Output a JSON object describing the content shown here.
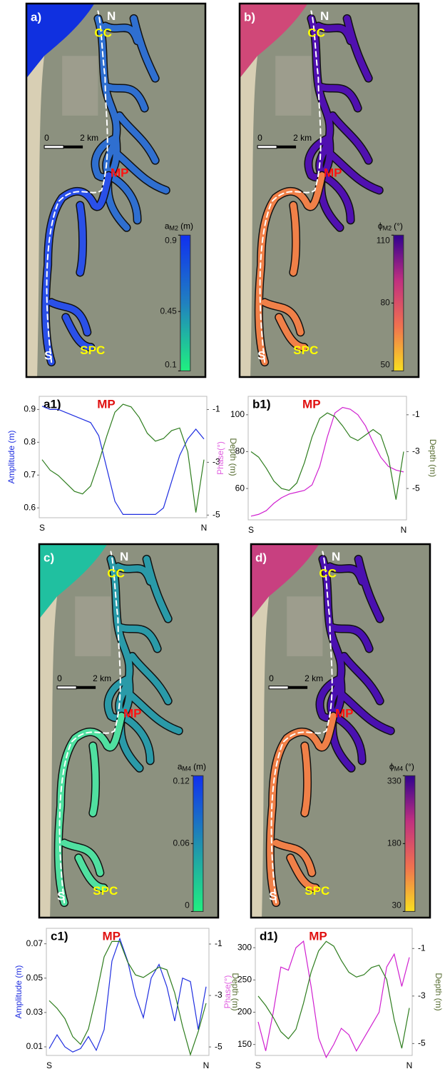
{
  "chart_data": [
    {
      "type": "line",
      "title": "a1)",
      "annotation": "MP",
      "ylabel": "Amplitude (m)",
      "ylabel_color": "#1f2ee0",
      "y2label": "Depth (m)",
      "y2label_color": "#556b2f",
      "categories": [
        "S",
        null,
        null,
        null,
        null,
        null,
        null,
        null,
        null,
        null,
        null,
        null,
        null,
        null,
        null,
        null,
        null,
        null,
        null,
        null,
        "N"
      ],
      "ylim": [
        0.57,
        0.94
      ],
      "yticks": [
        0.6,
        0.7,
        0.8,
        0.9
      ],
      "y2lim": [
        -5.1,
        -0.5
      ],
      "y2ticks": [
        -1,
        -3,
        -5
      ],
      "series": [
        {
          "color": "#1f2ee0",
          "values": [
            0.91,
            0.9,
            0.9,
            0.89,
            0.88,
            0.87,
            0.86,
            0.82,
            0.72,
            0.62,
            0.58,
            0.58,
            0.58,
            0.58,
            0.58,
            0.6,
            0.68,
            0.76,
            0.81,
            0.84,
            0.81
          ]
        },
        {
          "color": "#2e7d1e",
          "axis": "y2",
          "values": [
            -2.9,
            -3.3,
            -3.5,
            -3.8,
            -4.1,
            -4.2,
            -3.9,
            -3.0,
            -2.0,
            -1.1,
            -0.8,
            -0.9,
            -1.3,
            -1.9,
            -2.2,
            -2.1,
            -1.8,
            -1.7,
            -2.6,
            -4.9,
            -2.9
          ]
        }
      ]
    },
    {
      "type": "line",
      "title": "b1)",
      "annotation": "MP",
      "ylabel": "Phase(°)",
      "ylabel_color": "#e060e0",
      "y2label": "Depth (m)",
      "y2label_color": "#556b2f",
      "categories": [
        "S",
        null,
        null,
        null,
        null,
        null,
        null,
        null,
        null,
        null,
        null,
        null,
        null,
        null,
        null,
        null,
        null,
        null,
        null,
        null,
        "N"
      ],
      "ylim": [
        43,
        110
      ],
      "yticks": [
        60,
        80,
        100
      ],
      "y2lim": [
        -6.7,
        0
      ],
      "y2ticks": [
        -1,
        -3,
        -5
      ],
      "series": [
        {
          "color": "#d020d0",
          "values": [
            45,
            46,
            48,
            52,
            55,
            57,
            58,
            59,
            62,
            72,
            88,
            101,
            104,
            103,
            100,
            94,
            85,
            77,
            72,
            70,
            69
          ]
        },
        {
          "color": "#2e7d1e",
          "axis": "y2",
          "values": [
            -3.0,
            -3.3,
            -3.9,
            -4.6,
            -5.0,
            -5.1,
            -4.7,
            -3.6,
            -2.2,
            -1.2,
            -0.9,
            -1.1,
            -1.6,
            -2.2,
            -2.4,
            -2.1,
            -1.8,
            -2.1,
            -3.3,
            -5.6,
            -3.0
          ]
        }
      ]
    },
    {
      "type": "line",
      "title": "c1)",
      "annotation": "MP",
      "ylabel": "Amplitude (m)",
      "ylabel_color": "#1f2ee0",
      "y2label": "Depth (m)",
      "y2label_color": "#556b2f",
      "categories": [
        "S",
        null,
        null,
        null,
        null,
        null,
        null,
        null,
        null,
        null,
        null,
        null,
        null,
        null,
        null,
        null,
        null,
        null,
        null,
        null,
        "N"
      ],
      "ylim": [
        0.005,
        0.079
      ],
      "yticks": [
        0.01,
        0.03,
        0.05,
        0.07
      ],
      "y2lim": [
        -5.33,
        -0.39
      ],
      "y2ticks": [
        -1,
        -3,
        -5
      ],
      "series": [
        {
          "color": "#1f2ee0",
          "values": [
            0.009,
            0.017,
            0.01,
            0.007,
            0.009,
            0.016,
            0.008,
            0.02,
            0.06,
            0.073,
            0.06,
            0.04,
            0.027,
            0.05,
            0.058,
            0.045,
            0.025,
            0.05,
            0.048,
            0.02,
            0.045
          ]
        },
        {
          "color": "#2e7d1e",
          "axis": "y2",
          "values": [
            -3.2,
            -3.5,
            -3.9,
            -4.6,
            -4.9,
            -4.3,
            -3.0,
            -1.5,
            -0.9,
            -0.9,
            -1.7,
            -2.2,
            -2.3,
            -2.1,
            -1.9,
            -2.0,
            -2.9,
            -4.2,
            -5.3,
            -4.4,
            -3.3
          ]
        }
      ]
    },
    {
      "type": "line",
      "title": "d1)",
      "annotation": "MP",
      "ylabel": "Phase(°)",
      "ylabel_color": "#e060e0",
      "y2label": "Depth (m)",
      "y2label_color": "#556b2f",
      "categories": [
        "S",
        null,
        null,
        null,
        null,
        null,
        null,
        null,
        null,
        null,
        null,
        null,
        null,
        null,
        null,
        null,
        null,
        null,
        null,
        null,
        "N"
      ],
      "ylim": [
        133,
        330
      ],
      "yticks": [
        150,
        200,
        250,
        300
      ],
      "y2lim": [
        -5.5,
        -0.15
      ],
      "y2ticks": [
        -1,
        -3,
        -5
      ],
      "series": [
        {
          "color": "#d020d0",
          "values": [
            185,
            140,
            200,
            270,
            265,
            300,
            310,
            240,
            160,
            130,
            150,
            175,
            165,
            140,
            160,
            180,
            200,
            270,
            290,
            240,
            285
          ]
        },
        {
          "color": "#2e7d1e",
          "axis": "y2",
          "values": [
            -3.0,
            -3.4,
            -3.9,
            -4.5,
            -4.8,
            -4.4,
            -3.3,
            -2.0,
            -1.1,
            -0.7,
            -0.9,
            -1.5,
            -2.0,
            -2.2,
            -2.1,
            -1.8,
            -1.7,
            -2.3,
            -4.0,
            -5.2,
            -3.5
          ]
        }
      ]
    }
  ],
  "maps": [
    {
      "label": "a)",
      "places": [
        "N",
        "CC",
        "MP",
        "S",
        "SPC"
      ],
      "scale": [
        "0",
        "2 km"
      ],
      "symbol": "a",
      "subscript": "M2",
      "unit": "(m)",
      "clim": [
        0.1,
        0.9
      ],
      "ticks": [
        0.9,
        0.45,
        0.1
      ],
      "colors": [
        "#20f080",
        "#2080c0",
        "#1030f0"
      ],
      "sea": "#1030e0",
      "channel_upper": "#2f6fd0",
      "channel_lower": "#2a50e8"
    },
    {
      "label": "b)",
      "places": [
        "N",
        "CC",
        "MP",
        "S",
        "SPC"
      ],
      "scale": [
        "0",
        "2 km"
      ],
      "symbol": "ϕ",
      "subscript": "M2",
      "unit": "(°)",
      "clim": [
        50,
        110
      ],
      "ticks": [
        110,
        80,
        50
      ],
      "colors": [
        "#f8e020",
        "#f07050",
        "#c03080",
        "#300090"
      ],
      "sea": "#d04878",
      "channel_upper": "#5010b0",
      "channel_lower": "#f08048"
    },
    {
      "label": "c)",
      "places": [
        "N",
        "CC",
        "MP",
        "S",
        "SPC"
      ],
      "scale": [
        "0",
        "2 km"
      ],
      "symbol": "a",
      "subscript": "M4",
      "unit": "(m)",
      "clim": [
        0,
        0.12
      ],
      "ticks": [
        0.12,
        0.06,
        0
      ],
      "colors": [
        "#20f080",
        "#2090b0",
        "#1030f0"
      ],
      "sea": "#20c0a0",
      "channel_upper": "#2a9aa8",
      "channel_lower": "#50e0a0"
    },
    {
      "label": "d)",
      "places": [
        "N",
        "CC",
        "MP",
        "S",
        "SPC"
      ],
      "scale": [
        "0",
        "2 km"
      ],
      "symbol": "ϕ",
      "subscript": "M4",
      "unit": "(°)",
      "clim": [
        30,
        330
      ],
      "ticks": [
        330,
        180,
        30
      ],
      "colors": [
        "#f8e020",
        "#f07050",
        "#c03080",
        "#300090"
      ],
      "sea": "#c84080",
      "channel_upper": "#4a10b0",
      "channel_lower": "#f08048"
    }
  ]
}
